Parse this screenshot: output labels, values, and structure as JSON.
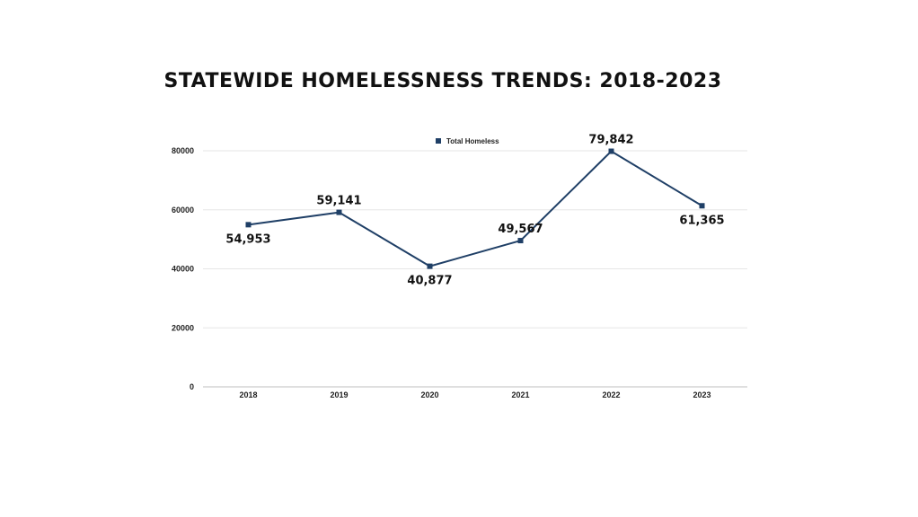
{
  "chart_data": {
    "type": "line",
    "title": "STATEWIDE HOMELESSNESS TRENDS: 2018-2023",
    "categories": [
      "2018",
      "2019",
      "2020",
      "2021",
      "2022",
      "2023"
    ],
    "series": [
      {
        "name": "Total Homeless",
        "values": [
          54953,
          59141,
          40877,
          49567,
          79842,
          61365
        ],
        "data_labels": [
          "54,953",
          "59,141",
          "40,877",
          "49,567",
          "79,842",
          "61,365"
        ],
        "color": "#1f3f66"
      }
    ],
    "y_ticks": [
      "0",
      "20000",
      "40000",
      "60000",
      "80000"
    ],
    "ylim": [
      0,
      80000
    ],
    "xlabel": "",
    "ylabel": "",
    "grid": true,
    "legend": "top-center"
  }
}
